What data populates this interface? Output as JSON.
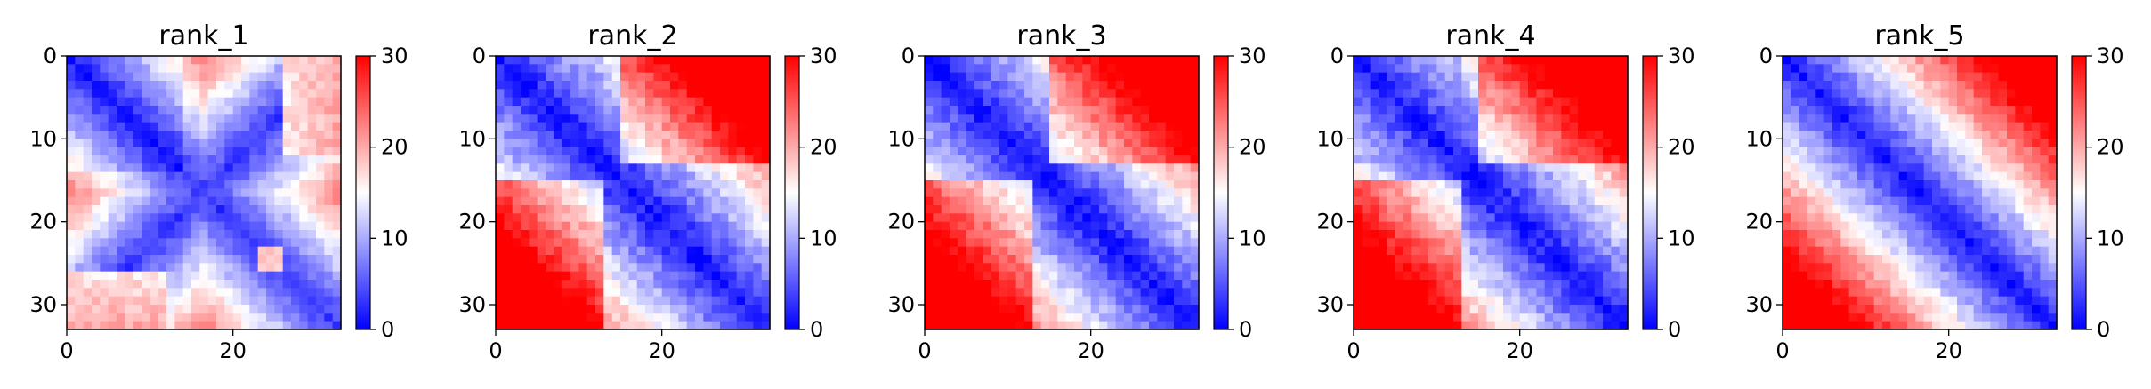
{
  "chart_data": [
    {
      "type": "heatmap",
      "title": "rank_1",
      "matrix_size": 33,
      "pattern": "x_cross",
      "xticks": [
        0,
        20
      ],
      "yticks": [
        0,
        10,
        20,
        30
      ],
      "xlim": [
        0,
        33
      ],
      "ylim": [
        0,
        33
      ],
      "colorbar": {
        "min": 0,
        "max": 30,
        "ticks": [
          0,
          10,
          20,
          30
        ],
        "cmap": "bwr"
      },
      "notes": "low distance along both diagonals, high values in lower-center block"
    },
    {
      "type": "heatmap",
      "title": "rank_2",
      "matrix_size": 33,
      "pattern": "domains",
      "xticks": [
        0,
        20
      ],
      "yticks": [
        0,
        10,
        20,
        30
      ],
      "xlim": [
        0,
        33
      ],
      "ylim": [
        0,
        33
      ],
      "colorbar": {
        "min": 0,
        "max": 30,
        "ticks": [
          0,
          10,
          20,
          30
        ],
        "cmap": "bwr"
      }
    },
    {
      "type": "heatmap",
      "title": "rank_3",
      "matrix_size": 33,
      "pattern": "domains",
      "xticks": [
        0,
        20
      ],
      "yticks": [
        0,
        10,
        20,
        30
      ],
      "xlim": [
        0,
        33
      ],
      "ylim": [
        0,
        33
      ],
      "colorbar": {
        "min": 0,
        "max": 30,
        "ticks": [
          0,
          10,
          20,
          30
        ],
        "cmap": "bwr"
      }
    },
    {
      "type": "heatmap",
      "title": "rank_4",
      "matrix_size": 33,
      "pattern": "domains",
      "xticks": [
        0,
        20
      ],
      "yticks": [
        0,
        10,
        20,
        30
      ],
      "xlim": [
        0,
        33
      ],
      "ylim": [
        0,
        33
      ],
      "colorbar": {
        "min": 0,
        "max": 30,
        "ticks": [
          0,
          10,
          20,
          30
        ],
        "cmap": "bwr"
      }
    },
    {
      "type": "heatmap",
      "title": "rank_5",
      "matrix_size": 33,
      "pattern": "banded",
      "xticks": [
        0,
        20
      ],
      "yticks": [
        0,
        10,
        20,
        30
      ],
      "xlim": [
        0,
        33
      ],
      "ylim": [
        0,
        33
      ],
      "colorbar": {
        "min": 0,
        "max": 30,
        "ticks": [
          0,
          10,
          20,
          30
        ],
        "cmap": "bwr"
      }
    }
  ]
}
